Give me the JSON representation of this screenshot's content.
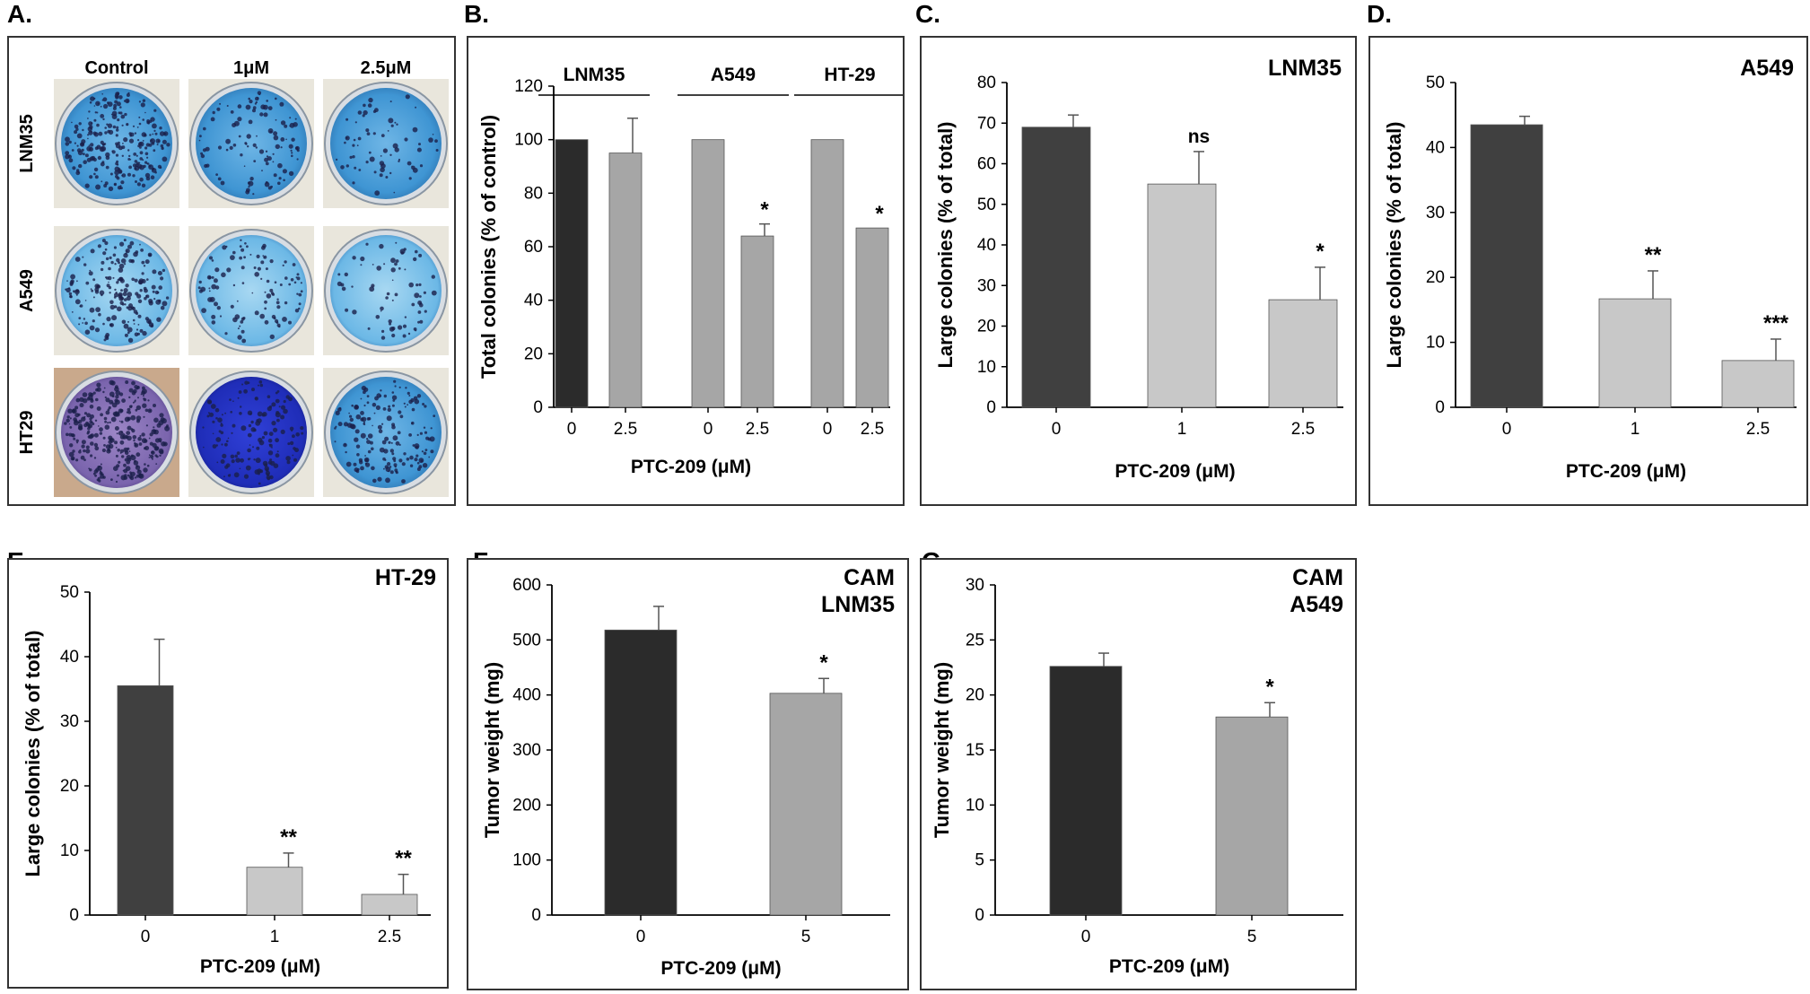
{
  "panelA": {
    "letter": "A.",
    "col_labels": [
      "Control",
      "1μM",
      "2.5μM"
    ],
    "row_labels": [
      "LNM35",
      "A549",
      "HT29"
    ]
  },
  "chart_data": [
    {
      "id": "B",
      "letter": "B.",
      "type": "bar",
      "ylabel": "Total colonies (% of control)",
      "xlabel": "PTC-209 (μM)",
      "ylim": [
        0,
        120
      ],
      "yticks": [
        0,
        20,
        40,
        60,
        80,
        100,
        120
      ],
      "groups": [
        {
          "name": "LNM35",
          "categories": [
            "0",
            "2.5"
          ],
          "values": [
            100,
            95
          ],
          "errors": [
            0,
            13
          ],
          "colors": [
            "#2b2b2b",
            "#a6a6a6"
          ],
          "sig": [
            "",
            ""
          ]
        },
        {
          "name": "A549",
          "categories": [
            "0",
            "2.5"
          ],
          "values": [
            100,
            64
          ],
          "errors": [
            0,
            4.5
          ],
          "colors": [
            "#a6a6a6",
            "#a6a6a6"
          ],
          "sig": [
            "",
            "*"
          ]
        },
        {
          "name": "HT-29",
          "categories": [
            "0",
            "2.5"
          ],
          "values": [
            100,
            67
          ],
          "errors": [
            0,
            0
          ],
          "colors": [
            "#a6a6a6",
            "#a6a6a6"
          ],
          "sig": [
            "",
            "*"
          ]
        }
      ]
    },
    {
      "id": "C",
      "letter": "C.",
      "type": "bar",
      "cell_line": "LNM35",
      "ylabel": "Large colonies (% of total)",
      "xlabel": "PTC-209 (μM)",
      "ylim": [
        0,
        80
      ],
      "yticks": [
        0,
        10,
        20,
        30,
        40,
        50,
        60,
        70,
        80
      ],
      "categories": [
        "0",
        "1",
        "2.5"
      ],
      "values": [
        69,
        55,
        26.5
      ],
      "errors": [
        3,
        8,
        8
      ],
      "colors": [
        "#404040",
        "#c8c8c8",
        "#c8c8c8"
      ],
      "sig": [
        "",
        "ns",
        "*"
      ]
    },
    {
      "id": "D",
      "letter": "D.",
      "type": "bar",
      "cell_line": "A549",
      "ylabel": "Large colonies (% of total)",
      "xlabel": "PTC-209 (μM)",
      "ylim": [
        0,
        50
      ],
      "yticks": [
        0,
        10,
        20,
        30,
        40,
        50
      ],
      "categories": [
        "0",
        "1",
        "2.5"
      ],
      "values": [
        43.5,
        16.7,
        7.2
      ],
      "errors": [
        1.3,
        4.3,
        3.3
      ],
      "colors": [
        "#404040",
        "#c8c8c8",
        "#c8c8c8"
      ],
      "sig": [
        "",
        "**",
        "***"
      ]
    },
    {
      "id": "E",
      "letter": "E.",
      "type": "bar",
      "cell_line": "HT-29",
      "ylabel": "Large colonies (% of total)",
      "xlabel": "PTC-209 (μM)",
      "ylim": [
        0,
        50
      ],
      "yticks": [
        0,
        10,
        20,
        30,
        40,
        50
      ],
      "categories": [
        "0",
        "1",
        "2.5"
      ],
      "values": [
        35.5,
        7.4,
        3.2
      ],
      "errors": [
        7.2,
        2.2,
        3.1
      ],
      "colors": [
        "#404040",
        "#c8c8c8",
        "#c8c8c8"
      ],
      "sig": [
        "",
        "**",
        "**"
      ]
    },
    {
      "id": "F",
      "letter": "F.",
      "type": "bar",
      "cell_line": [
        "CAM",
        "LNM35"
      ],
      "ylabel": "Tumor weight (mg)",
      "xlabel": "PTC-209 (μM)",
      "ylim": [
        0,
        600
      ],
      "yticks": [
        0,
        100,
        200,
        300,
        400,
        500,
        600
      ],
      "categories": [
        "0",
        "5"
      ],
      "values": [
        518,
        403
      ],
      "errors": [
        43,
        27
      ],
      "colors": [
        "#2b2b2b",
        "#a6a6a6"
      ],
      "sig": [
        "",
        "*"
      ]
    },
    {
      "id": "G",
      "letter": "G.",
      "type": "bar",
      "cell_line": [
        "CAM",
        "A549"
      ],
      "ylabel": "Tumor weight (mg)",
      "xlabel": "PTC-209 (μM)",
      "ylim": [
        0,
        30
      ],
      "yticks": [
        0,
        5,
        10,
        15,
        20,
        25,
        30
      ],
      "categories": [
        "0",
        "5"
      ],
      "values": [
        22.6,
        18
      ],
      "errors": [
        1.2,
        1.3
      ],
      "colors": [
        "#2b2b2b",
        "#a6a6a6"
      ],
      "sig": [
        "",
        "*"
      ]
    }
  ]
}
